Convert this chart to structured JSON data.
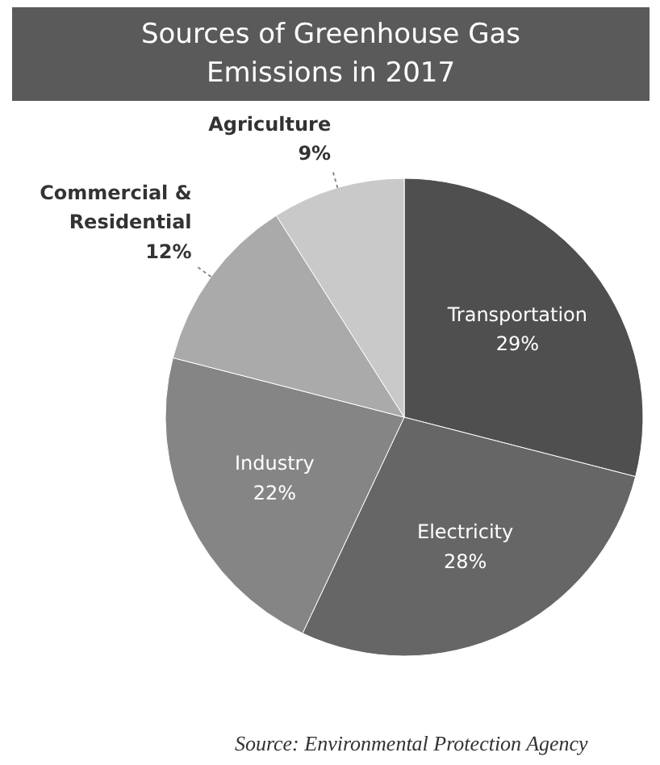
{
  "chart_data": {
    "type": "pie",
    "title": "Sources of Greenhouse Gas Emissions in 2017",
    "categories": [
      "Transportation",
      "Electricity",
      "Industry",
      "Commercial & Residential",
      "Agriculture"
    ],
    "values": [
      29,
      28,
      22,
      12,
      9
    ],
    "value_labels": [
      "29%",
      "28%",
      "22%",
      "12%",
      "9%"
    ],
    "colors": [
      "#4f4f4f",
      "#666666",
      "#858585",
      "#aaaaaa",
      "#c9c9c9"
    ],
    "annotations": [
      "Source: Environmental Protection Agency"
    ]
  }
}
